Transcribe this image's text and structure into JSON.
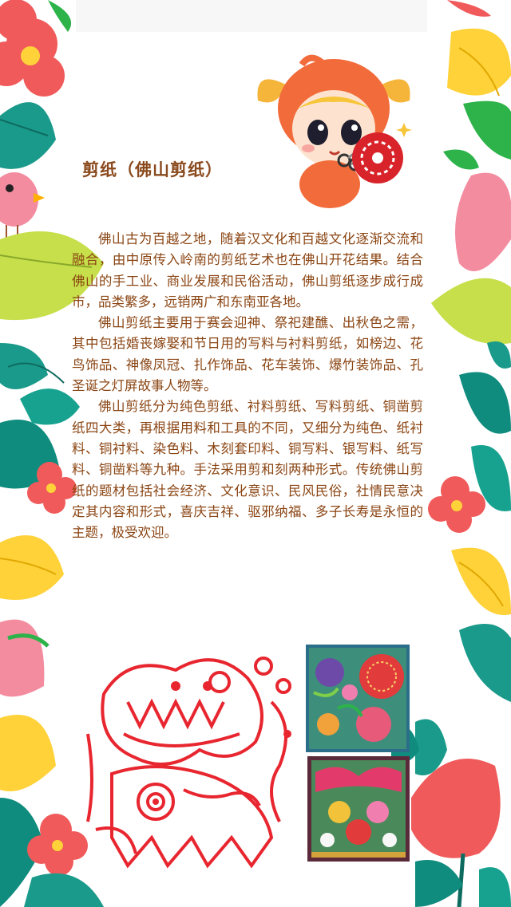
{
  "article": {
    "title": "剪纸（佛山剪纸）",
    "paragraphs": [
      "佛山古为百越之地，随着汉文化和百越文化逐渐交流和融合，由中原传入岭南的剪纸艺术也在佛山开花结果。结合佛山的手工业、商业发展和民俗活动，佛山剪纸逐步成行成市，品类繁多，远销两广和东南亚各地。",
      "佛山剪纸主要用于赛会迎神、祭祀建醮、出秋色之需，其中包括婚丧嫁娶和节日用的写料与衬料剪纸，如榜边、花鸟饰品、神像凤冠、扎作饰品、花车装饰、爆竹装饰品、孔圣诞之灯屏故事人物等。",
      "佛山剪纸分为纯色剪纸、衬料剪纸、写料剪纸、铜凿剪纸四大类，再根据用料和工具的不同，又细分为纯色、纸衬料、铜衬料、染色料、木刻套印料、铜写料、银写料、纸写料、铜凿料等九种。手法采用剪和刻两种形式。传统佛山剪纸的题材包括社会经济、文化意识、民风民俗，社情民意决定其内容和形式，喜庆吉祥、驱邪纳福、多子长寿是永恒的主题，极受欢迎。"
    ]
  },
  "colors": {
    "title": "#8a4a1d",
    "text": "#8b4513",
    "flower_red": "#f05a5a",
    "leaf_teal": "#1a9a8a",
    "leaf_yellow": "#ffd23a",
    "leaf_green": "#2db34a",
    "leaf_pink": "#f48ca0",
    "papercut_red": "#e8262f"
  },
  "icons": {
    "mascot": "fish-hat-mascot-with-scissors",
    "lion": "red-lion-dance-papercut",
    "artwork_1": "colorful-flower-papercut",
    "artwork_2": "colorful-pattern-papercut",
    "border": "floral-leaf-border"
  }
}
